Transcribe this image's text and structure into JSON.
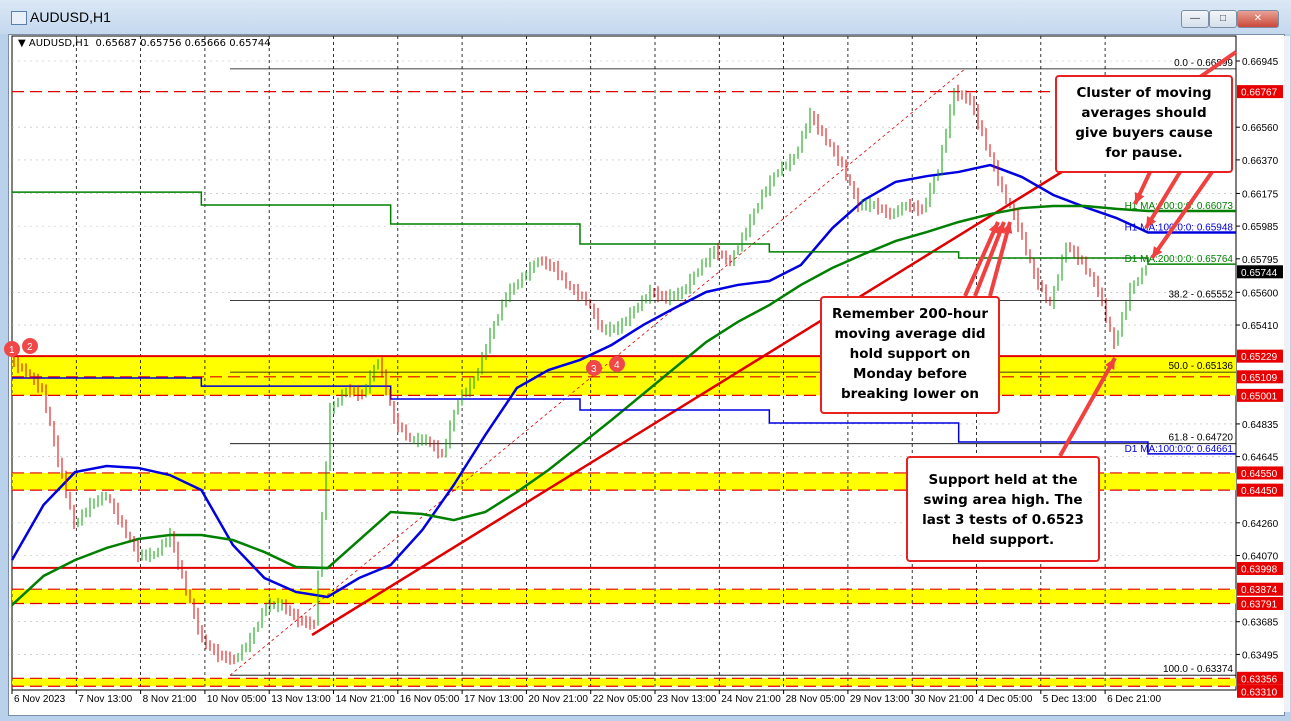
{
  "window": {
    "title": "AUDUSD,H1",
    "controls": [
      "minimize",
      "maximize",
      "close"
    ]
  },
  "chart_header": {
    "symbol": "AUDUSD,H1",
    "open": "0.65687",
    "high": "0.65756",
    "low": "0.65666",
    "close": "0.65744"
  },
  "chart_data": {
    "type": "line",
    "symbol": "AUDUSD,H1",
    "ylim": [
      0.6329,
      0.6697
    ],
    "grid": true,
    "x_ticks": [
      "6 Nov 2023",
      "7 Nov 13:00",
      "8 Nov 21:00",
      "10 Nov 05:00",
      "13 Nov 13:00",
      "14 Nov 21:00",
      "16 Nov 05:00",
      "17 Nov 13:00",
      "20 Nov 21:00",
      "22 Nov 05:00",
      "23 Nov 13:00",
      "24 Nov 21:00",
      "28 Nov 05:00",
      "29 Nov 13:00",
      "30 Nov 21:00",
      "4 Dec 05:00",
      "5 Dec 13:00",
      "6 Dec 21:00"
    ],
    "y_ticks": [
      "0.66945",
      "0.66560",
      "0.66370",
      "0.66175",
      "0.65985",
      "0.65795",
      "0.65600",
      "0.65410",
      "0.64835",
      "0.64645",
      "0.64260",
      "0.64070",
      "0.63685",
      "0.63495"
    ],
    "price_closes": [
      0.65207,
      0.65137,
      0.65032,
      0.64625,
      0.64247,
      0.64364,
      0.64422,
      0.64247,
      0.64073,
      0.64073,
      0.64189,
      0.63869,
      0.63579,
      0.63492,
      0.63462,
      0.63579,
      0.63782,
      0.63782,
      0.63695,
      0.63666,
      0.64916,
      0.65032,
      0.65003,
      0.65207,
      0.64858,
      0.64742,
      0.64742,
      0.64654,
      0.64974,
      0.6509,
      0.65352,
      0.65585,
      0.65683,
      0.65788,
      0.65742,
      0.65625,
      0.65555,
      0.65381,
      0.65393,
      0.65497,
      0.65602,
      0.65567,
      0.65602,
      0.6573,
      0.65846,
      0.65776,
      0.65962,
      0.66166,
      0.66311,
      0.66381,
      0.66631,
      0.66486,
      0.6634,
      0.66108,
      0.66108,
      0.6605,
      0.66108,
      0.66079,
      0.66311,
      0.66765,
      0.66718,
      0.66457,
      0.66195,
      0.65992,
      0.65701,
      0.65526,
      0.65875,
      0.65776,
      0.65614,
      0.65294,
      0.65614,
      0.65744
    ],
    "series": [
      {
        "name": "H1 MA:100:0:0: 0.65948",
        "color": "#0000e0",
        "values": [
          0.64044,
          0.64364,
          0.64555,
          0.6459,
          0.64579,
          0.64538,
          0.64451,
          0.64131,
          0.63939,
          0.63858,
          0.63829,
          0.63939,
          0.64015,
          0.64218,
          0.6448,
          0.64771,
          0.65044,
          0.65148,
          0.65207,
          0.65294,
          0.6541,
          0.65509,
          0.65602,
          0.65643,
          0.65666,
          0.65759,
          0.65974,
          0.66137,
          0.66242,
          0.66276,
          0.663,
          0.6634,
          0.66271,
          0.66166,
          0.66096,
          0.66032,
          0.65948
        ]
      },
      {
        "name": "H1 MA:200:0:0: 0.66073",
        "color": "#008000",
        "values": [
          0.63782,
          0.63951,
          0.64044,
          0.64114,
          0.64166,
          0.64189,
          0.64189,
          0.6416,
          0.6409,
          0.64003,
          0.63997,
          0.6416,
          0.64323,
          0.64311,
          0.64276,
          0.64323,
          0.64439,
          0.64567,
          0.64712,
          0.64858,
          0.65009,
          0.6516,
          0.65311,
          0.65428,
          0.65526,
          0.65643,
          0.65742,
          0.65823,
          0.65898,
          0.65951,
          0.66009,
          0.66055,
          0.6609,
          0.66102,
          0.66102,
          0.66085,
          0.66073
        ]
      },
      {
        "name": "D1 MA:200:0:0: 0.65764",
        "color": "#008000",
        "values": [
          0.66183,
          0.66108,
          0.65997,
          0.65881,
          0.65835,
          0.658,
          0.65764
        ]
      },
      {
        "name": "D1 MA:100:0:0: 0.64661",
        "color": "#0000e0",
        "values": [
          0.65102,
          0.65055,
          0.6498,
          0.64916,
          0.6484,
          0.6473,
          0.64661
        ]
      }
    ],
    "fibonacci": [
      {
        "label": "0.0 - 0.66899",
        "price": 0.66899
      },
      {
        "label": "38.2 - 0.65552",
        "price": 0.65552
      },
      {
        "label": "50.0 - 0.65136",
        "price": 0.65136
      },
      {
        "label": "61.8 - 0.64720",
        "price": 0.6472
      },
      {
        "label": "100.0 - 0.63374",
        "price": 0.63374
      }
    ],
    "support_zones": [
      [
        0.65229,
        0.65001
      ],
      [
        0.6455,
        0.6445
      ],
      [
        0.63874,
        0.63791
      ],
      [
        0.63356,
        0.6331
      ]
    ],
    "level_lines": [
      {
        "price": 0.66767,
        "style": "dashed"
      },
      {
        "price": 0.65229,
        "style": "solid"
      },
      {
        "price": 0.65109,
        "style": "dashed"
      },
      {
        "price": 0.65001,
        "style": "dashed"
      },
      {
        "price": 0.6455,
        "style": "dashed"
      },
      {
        "price": 0.6445,
        "style": "dashed"
      },
      {
        "price": 0.63998,
        "style": "solid"
      },
      {
        "price": 0.63874,
        "style": "dashed"
      },
      {
        "price": 0.63791,
        "style": "dashed"
      },
      {
        "price": 0.63356,
        "style": "dashed"
      },
      {
        "price": 0.6331,
        "style": "dashed"
      }
    ],
    "price_labels_red": [
      "0.66767",
      "0.65229",
      "0.65109",
      "0.65001",
      "0.64550",
      "0.64450",
      "0.63998",
      "0.63874",
      "0.63791",
      "0.63356",
      "0.63310"
    ],
    "current_price": "0.65744",
    "test_markers": [
      "1",
      "2",
      "3",
      "4"
    ],
    "annotations": [
      "Cluster of moving averages should give buyers cause for pause.",
      "Remember 200-hour moving average did hold support on Monday before breaking lower on",
      "Support held at the swing area high. The last 3 tests of 0.6523 held support."
    ],
    "colors": {
      "up": "#00a000",
      "down": "#e00000",
      "zone": "#ffff00",
      "level": "#e00000",
      "annotation": "#f04040"
    }
  }
}
